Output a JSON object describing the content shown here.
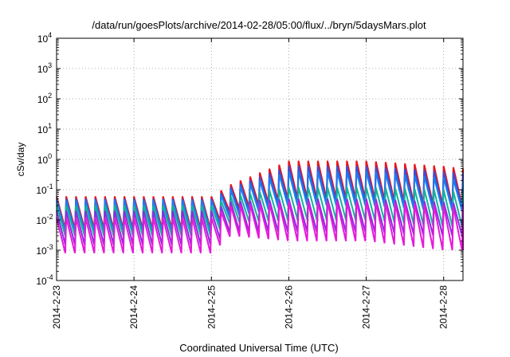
{
  "chart_data": {
    "type": "line",
    "title": "/data/run/goesPlots/archive/2014-02-28/05:00/flux/../bryn/5daysMars.plot",
    "xlabel": "Coordinated Universal Time (UTC)",
    "ylabel": "cSv/day",
    "yscale": "log",
    "ylim": [
      0.0001,
      10000
    ],
    "xlim": [
      "2014-02-23 00:00",
      "2014-02-28 06:00"
    ],
    "grid": true,
    "legend": "none",
    "x_ticks": [
      "2014-2-23",
      "2014-2-24",
      "2014-2-25",
      "2014-2-26",
      "2014-2-27",
      "2014-2-28"
    ],
    "y_ticks": [
      {
        "base": "10",
        "exp": "-4"
      },
      {
        "base": "10",
        "exp": "-3"
      },
      {
        "base": "10",
        "exp": "-2"
      },
      {
        "base": "10",
        "exp": "-1"
      },
      {
        "base": "10",
        "exp": "0"
      },
      {
        "base": "10",
        "exp": "1"
      },
      {
        "base": "10",
        "exp": "2"
      },
      {
        "base": "10",
        "exp": "3"
      },
      {
        "base": "10",
        "exp": "4"
      }
    ],
    "series_colors": [
      "#e8141c",
      "#3b4fd8",
      "#1a7df0",
      "#12b39a",
      "#8a2be2",
      "#e619d9"
    ],
    "series": [
      {
        "color": "#e8141c",
        "x": [
          "2014-02-23 00:00",
          "2014-02-24 00:00",
          "2014-02-25 00:00",
          "2014-02-25 06:00",
          "2014-02-26 00:00",
          "2014-02-27 00:00",
          "2014-02-28 00:00",
          "2014-02-28 06:00"
        ],
        "peak": [
          0.06,
          0.06,
          0.06,
          0.15,
          0.9,
          0.9,
          0.6,
          0.5
        ],
        "trough": [
          0.005,
          0.005,
          0.005,
          0.02,
          0.05,
          0.05,
          0.03,
          0.03
        ]
      },
      {
        "color": "#3b4fd8",
        "x": [
          "2014-02-23 00:00",
          "2014-02-24 00:00",
          "2014-02-25 00:00",
          "2014-02-25 06:00",
          "2014-02-26 00:00",
          "2014-02-27 00:00",
          "2014-02-28 00:00",
          "2014-02-28 06:00"
        ],
        "peak": [
          0.05,
          0.05,
          0.05,
          0.12,
          0.6,
          0.6,
          0.4,
          0.35
        ],
        "trough": [
          0.004,
          0.004,
          0.004,
          0.015,
          0.04,
          0.04,
          0.025,
          0.025
        ]
      },
      {
        "color": "#1a7df0",
        "x": [
          "2014-02-23 00:00",
          "2014-02-24 00:00",
          "2014-02-25 00:00",
          "2014-02-25 06:00",
          "2014-02-26 00:00",
          "2014-02-27 00:00",
          "2014-02-28 00:00",
          "2014-02-28 06:00"
        ],
        "peak": [
          0.045,
          0.045,
          0.045,
          0.1,
          0.4,
          0.4,
          0.25,
          0.2
        ],
        "trough": [
          0.004,
          0.004,
          0.004,
          0.012,
          0.03,
          0.03,
          0.02,
          0.02
        ]
      },
      {
        "color": "#12b39a",
        "x": [
          "2014-02-23 00:00",
          "2014-02-24 00:00",
          "2014-02-25 00:00",
          "2014-02-25 06:00",
          "2014-02-26 00:00",
          "2014-02-27 00:00",
          "2014-02-28 00:00",
          "2014-02-28 06:00"
        ],
        "peak": [
          0.03,
          0.03,
          0.03,
          0.06,
          0.12,
          0.12,
          0.1,
          0.08
        ],
        "trough": [
          0.003,
          0.003,
          0.003,
          0.008,
          0.01,
          0.01,
          0.006,
          0.006
        ]
      },
      {
        "color": "#8a2be2",
        "x": [
          "2014-02-23 00:00",
          "2014-02-24 00:00",
          "2014-02-25 00:00",
          "2014-02-25 06:00",
          "2014-02-26 00:00",
          "2014-02-27 00:00",
          "2014-02-28 00:00",
          "2014-02-28 06:00"
        ],
        "peak": [
          0.02,
          0.02,
          0.02,
          0.04,
          0.05,
          0.05,
          0.04,
          0.035
        ],
        "trough": [
          0.0015,
          0.0015,
          0.0015,
          0.004,
          0.004,
          0.004,
          0.003,
          0.003
        ]
      },
      {
        "color": "#e619d9",
        "x": [
          "2014-02-23 00:00",
          "2014-02-24 00:00",
          "2014-02-25 00:00",
          "2014-02-25 06:00",
          "2014-02-26 00:00",
          "2014-02-27 00:00",
          "2014-02-28 00:00",
          "2014-02-28 06:00"
        ],
        "peak": [
          0.012,
          0.012,
          0.012,
          0.03,
          0.04,
          0.04,
          0.03,
          0.025
        ],
        "trough": [
          0.0008,
          0.0008,
          0.0008,
          0.003,
          0.002,
          0.002,
          0.001,
          0.001
        ]
      }
    ]
  }
}
